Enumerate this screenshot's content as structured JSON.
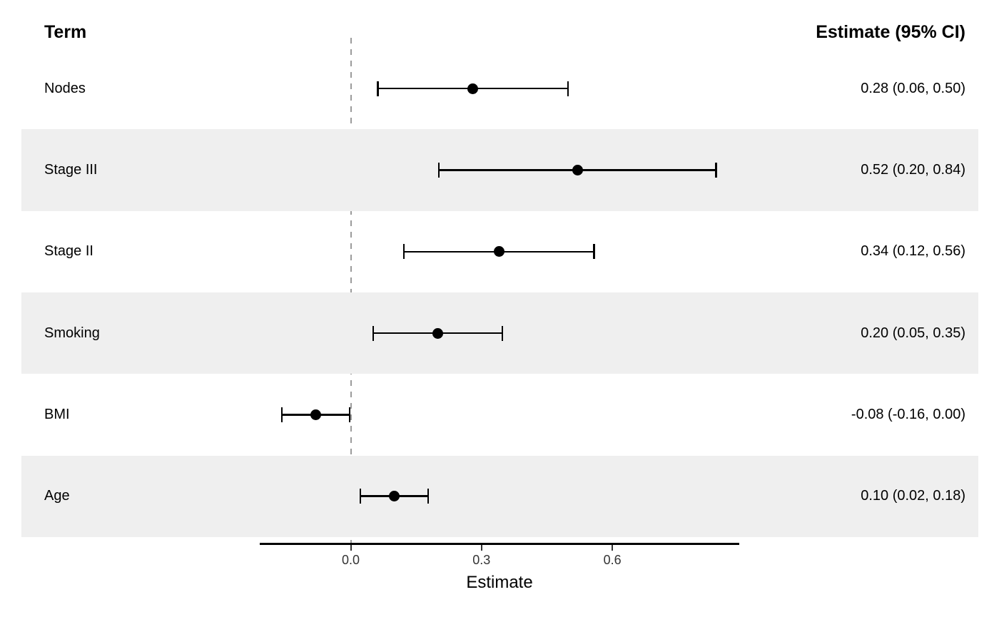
{
  "headers": {
    "term": "Term",
    "estimate": "Estimate (95% CI)"
  },
  "chart_data": {
    "type": "forest",
    "title": "",
    "xlabel": "Estimate",
    "x_ticks": [
      0.0,
      0.3,
      0.6
    ],
    "x_tick_labels": [
      "0.0",
      "0.3",
      "0.6"
    ],
    "xlim": [
      -0.21,
      0.89
    ],
    "reference_line": 0,
    "grid": false,
    "rows": [
      {
        "term": "Nodes",
        "estimate": 0.28,
        "ci_low": 0.06,
        "ci_high": 0.5,
        "label": "0.28 (0.06, 0.50)",
        "shaded": false
      },
      {
        "term": "Stage III",
        "estimate": 0.52,
        "ci_low": 0.2,
        "ci_high": 0.84,
        "label": "0.52 (0.20, 0.84)",
        "shaded": true
      },
      {
        "term": "Stage II",
        "estimate": 0.34,
        "ci_low": 0.12,
        "ci_high": 0.56,
        "label": "0.34 (0.12, 0.56)",
        "shaded": false
      },
      {
        "term": "Smoking",
        "estimate": 0.2,
        "ci_low": 0.05,
        "ci_high": 0.35,
        "label": "0.20 (0.05, 0.35)",
        "shaded": true
      },
      {
        "term": "BMI",
        "estimate": -0.08,
        "ci_low": -0.16,
        "ci_high": 0.0,
        "label": "-0.08 (-0.16, 0.00)",
        "shaded": false
      },
      {
        "term": "Age",
        "estimate": 0.1,
        "ci_low": 0.02,
        "ci_high": 0.18,
        "label": "0.10 (0.02, 0.18)",
        "shaded": true
      }
    ],
    "colors": {
      "band": "#efefef",
      "marker": "#000000",
      "reference_line": "#9b9b9b",
      "tick_text": "#333333"
    }
  }
}
